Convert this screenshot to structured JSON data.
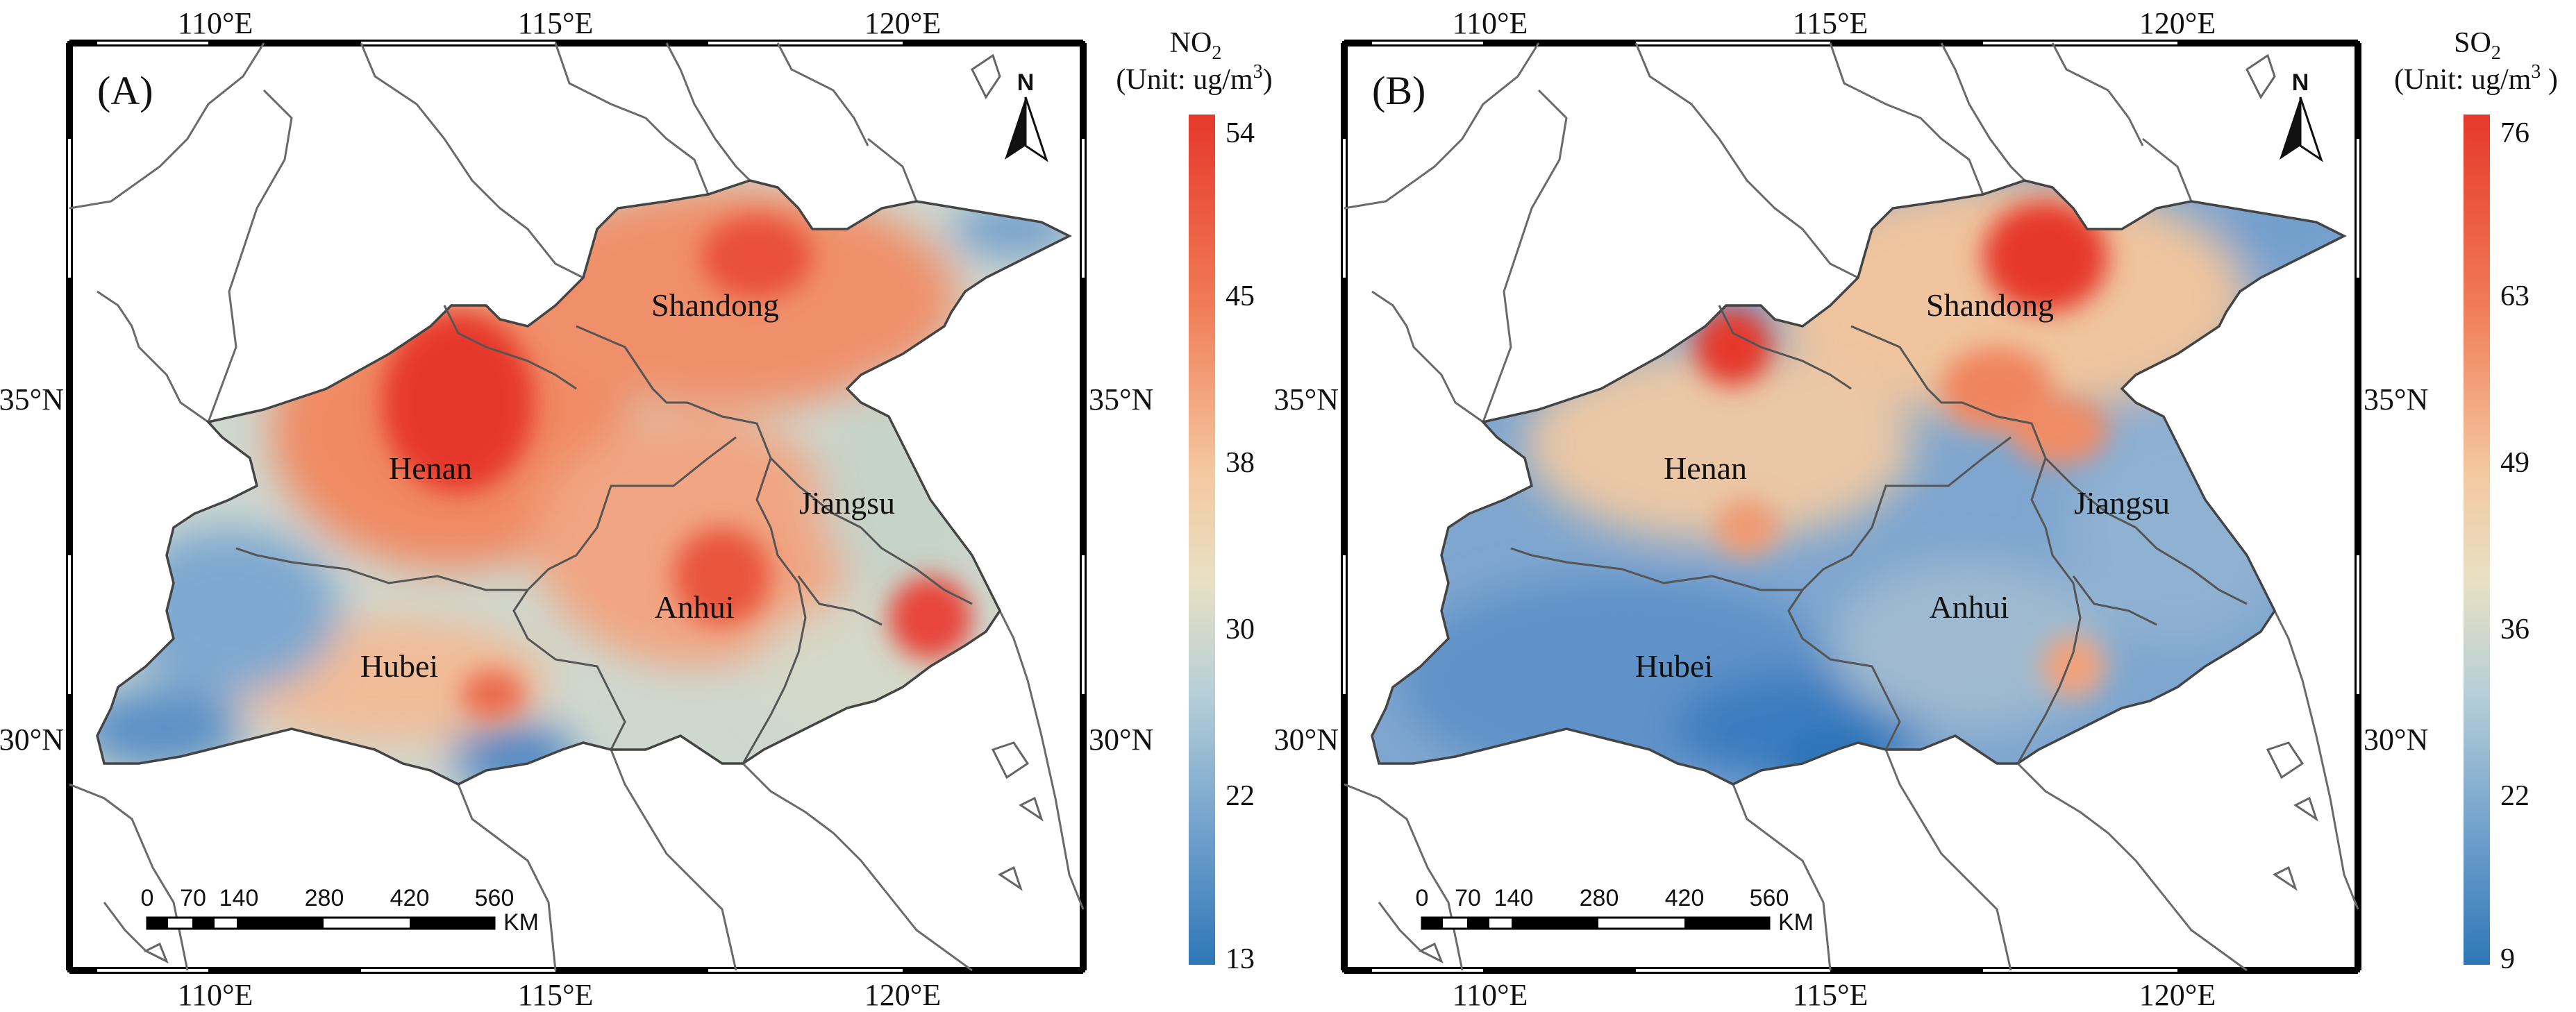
{
  "figure": {
    "panels": [
      {
        "label": "(A)",
        "pollutant": "NO",
        "subscript": "2",
        "unit": "(Unit: ug/m",
        "unit_sup": "3",
        "unit_close": ")",
        "legend_values": [
          "54",
          "45",
          "38",
          "30",
          "22",
          "13"
        ],
        "hotspots": [
          "Henan (north)",
          "Shandong (central)",
          "Jiangsu (south)"
        ]
      },
      {
        "label": "(B)",
        "pollutant": "SO",
        "subscript": "2",
        "unit": "(Unit: ug/m",
        "unit_sup": "3",
        "unit_close": " )",
        "legend_values": [
          "76",
          "63",
          "49",
          "36",
          "22",
          "9"
        ],
        "hotspots": [
          "Shandong (north)",
          "Henan (north)"
        ]
      }
    ],
    "axes": {
      "top": [
        "110°E",
        "115°E",
        "120°E"
      ],
      "bottom": [
        "110°E",
        "115°E",
        "120°E"
      ],
      "left": [
        "35°N",
        "30°N"
      ],
      "right": [
        "35°N",
        "30°N"
      ]
    },
    "provinces": [
      "Shandong",
      "Henan",
      "Jiangsu",
      "Anhui",
      "Hubei"
    ],
    "north_arrow": "N",
    "scalebar": {
      "ticks": [
        "0",
        "70",
        "140",
        "280",
        "420",
        "560"
      ],
      "unit": "KM"
    },
    "colors": {
      "high": "#e6382b",
      "mid_high": "#f4a582",
      "mid": "#f2dfbd",
      "mid_low": "#c6d3c8",
      "low": "#3f7fbf",
      "outside": "#ffffff"
    }
  }
}
